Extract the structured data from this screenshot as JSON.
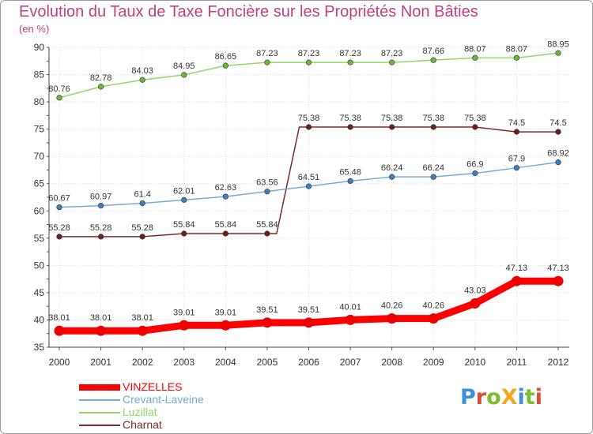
{
  "title": "Evolution du Taux de Taxe Foncière sur les Propriétés Non Bâties",
  "subtitle": "(en %)",
  "logo": {
    "text": "ProXiti",
    "letter_colors": [
      "#3a8fd9",
      "#e04a2f",
      "#7bbf2f",
      "#f2a81e",
      "#3a8fd9",
      "#7bbf2f",
      "#e04a2f"
    ]
  },
  "colors": {
    "title": "#c2417c",
    "grid": "#dddddd",
    "axis": "#444444"
  },
  "chart_data": {
    "type": "line",
    "title": "Evolution du Taux de Taxe Foncière sur les Propriétés Non Bâties",
    "ylabel": "(en %)",
    "xlabel": "",
    "ylim": [
      35,
      90
    ],
    "yticks": [
      35,
      40,
      45,
      50,
      55,
      60,
      65,
      70,
      75,
      80,
      85,
      90
    ],
    "x": [
      "2000",
      "2001",
      "2002",
      "2003",
      "2004",
      "2005",
      "2006",
      "2007",
      "2008",
      "2009",
      "2010",
      "2011",
      "2012"
    ],
    "grid": true,
    "legend_position": "bottom-left",
    "series": [
      {
        "name": "Luzillat",
        "color": "#9bd36a",
        "marker": "#6ab73a",
        "width": 1.5,
        "values": [
          80.76,
          82.78,
          84.03,
          84.95,
          86.65,
          87.23,
          87.23,
          87.23,
          87.23,
          87.66,
          88.07,
          88.07,
          88.95
        ],
        "labels": [
          "80.76",
          "82.78",
          "84.03",
          "84.95",
          "86.65",
          "87.23",
          "87.23",
          "87.23",
          "87.23",
          "87.66",
          "88.07",
          "88.07",
          "88.95"
        ]
      },
      {
        "name": "Charnat",
        "color": "#7a2a2a",
        "marker": "#6b1f1f",
        "width": 1.5,
        "values": [
          55.28,
          55.28,
          55.28,
          55.84,
          55.84,
          55.84,
          75.38,
          75.38,
          75.38,
          75.38,
          75.38,
          74.5,
          74.5
        ],
        "labels": [
          "55.28",
          "55.28",
          "55.28",
          "55.84",
          "55.84",
          "55.84",
          "75.38",
          "75.38",
          "75.38",
          "75.38",
          "75.38",
          "74.5",
          "74.5"
        ]
      },
      {
        "name": "Crevant-Laveine",
        "color": "#7aa9d6",
        "marker": "#3f7fc0",
        "width": 1.5,
        "values": [
          60.67,
          60.97,
          61.4,
          62.01,
          62.63,
          63.56,
          64.51,
          65.48,
          66.24,
          66.24,
          66.9,
          67.9,
          68.92
        ],
        "labels": [
          "60.67",
          "60.97",
          "61.4",
          "62.01",
          "62.63",
          "63.56",
          "64.51",
          "65.48",
          "66.24",
          "66.24",
          "66.9",
          "67.9",
          "68.92"
        ]
      },
      {
        "name": "VINZELLES",
        "color": "#ff0000",
        "marker": "#ee0000",
        "width": 9,
        "values": [
          38.01,
          38.01,
          38.01,
          39.01,
          39.01,
          39.51,
          39.51,
          40.01,
          40.26,
          40.26,
          43.03,
          47.13,
          47.13
        ],
        "labels": [
          "38.01",
          "38.01",
          "38.01",
          "39.01",
          "39.01",
          "39.51",
          "39.51",
          "40.01",
          "40.26",
          "40.26",
          "43.03",
          "47.13",
          "47.13"
        ]
      }
    ],
    "legend": [
      {
        "name": "VINZELLES",
        "color": "#ff0000",
        "thick": true
      },
      {
        "name": "Crevant-Laveine",
        "color": "#7aa9d6",
        "thick": false
      },
      {
        "name": "Luzillat",
        "color": "#9bd36a",
        "thick": false
      },
      {
        "name": "Charnat",
        "color": "#7a2a2a",
        "thick": false
      }
    ]
  }
}
